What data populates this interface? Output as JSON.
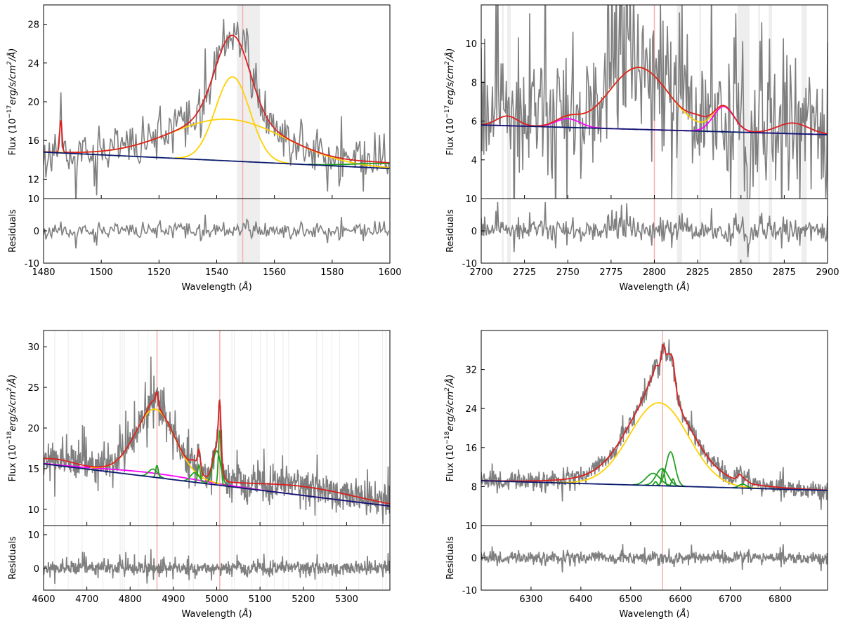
{
  "chart_data": [
    {
      "type": "line",
      "title": "",
      "xlabel": {
        "pre": "Wavelength (",
        "unit": "Å",
        "post": ")"
      },
      "ylabel": {
        "pre": "Flux (10",
        "exp": "−17",
        "unit": "erg/s/cm",
        "sq": "2",
        "post": "/Å)"
      },
      "res_label": "Residuals",
      "xlim": [
        1480,
        1600
      ],
      "ylim": [
        10,
        30
      ],
      "res_ylim": [
        -10,
        10
      ],
      "xticks": [
        1480,
        1500,
        1520,
        1540,
        1560,
        1580,
        1600
      ],
      "yticks": [
        12,
        16,
        20,
        24,
        28
      ],
      "res_yticks": [
        -10,
        0,
        10
      ],
      "continuum": [
        14.8,
        13.1
      ],
      "noise_sigma": 1.2,
      "step": 0.4,
      "seed": 11,
      "fe": [],
      "broad": [
        {
          "center": 1544,
          "amp": 4.3,
          "sigma": 20
        },
        {
          "center": 1545.5,
          "amp": 8.7,
          "sigma": 6
        }
      ],
      "narrow": [
        {
          "center": 1600,
          "amp": 0.5,
          "sigma": 12
        }
      ],
      "extra": [
        {
          "center": 1486,
          "amp": 3.3,
          "sigma": 0.4
        }
      ],
      "bands": [
        [
          1547,
          1555
        ]
      ],
      "lines": [
        1549
      ]
    },
    {
      "type": "line",
      "xlabel": {
        "pre": "Wavelength (",
        "unit": "Å",
        "post": ")"
      },
      "ylabel": {
        "pre": "Flux (10",
        "exp": "−17",
        "unit": "erg/s/cm",
        "sq": "2",
        "post": "/Å)"
      },
      "res_label": "Residuals",
      "xlim": [
        2700,
        2900
      ],
      "ylim": [
        2,
        12
      ],
      "res_ylim": [
        -10,
        10
      ],
      "xticks": [
        2700,
        2725,
        2750,
        2775,
        2800,
        2825,
        2850,
        2875,
        2900
      ],
      "yticks": [
        4,
        6,
        8,
        10
      ],
      "res_yticks": [
        -10,
        0,
        10
      ],
      "continuum": [
        5.8,
        5.3
      ],
      "noise_sigma": 2.0,
      "step": 0.5,
      "seed": 23,
      "fe": [
        {
          "center": 2750,
          "amp": 0.45,
          "sigma": 7
        },
        {
          "center": 2840,
          "amp": 1.3,
          "sigma": 6
        }
      ],
      "broad": [
        {
          "center": 2791,
          "amp": 3.2,
          "sigma": 17
        }
      ],
      "narrow": [],
      "extra": [
        {
          "center": 2715,
          "amp": 0.5,
          "sigma": 6
        },
        {
          "center": 2880,
          "amp": 0.55,
          "sigma": 9
        },
        {
          "center": 2825,
          "amp": 0.35,
          "sigma": 5
        }
      ],
      "bands": [
        [
          2712,
          2713
        ],
        [
          2715,
          2717
        ],
        [
          2813,
          2816
        ],
        [
          2826,
          2827
        ],
        [
          2848,
          2855
        ],
        [
          2860,
          2861
        ],
        [
          2866,
          2868
        ],
        [
          2885,
          2888
        ]
      ],
      "lines": [
        2800
      ]
    },
    {
      "type": "line",
      "xlabel": {
        "pre": "Wavelength (",
        "unit": "Å",
        "post": ")"
      },
      "ylabel": {
        "pre": "Flux (10",
        "exp": "−18",
        "unit": "erg/s/cm",
        "sq": "2",
        "post": "/Å)"
      },
      "res_label": "Residuals",
      "xlim": [
        4600,
        5400
      ],
      "ylim": [
        8,
        32
      ],
      "res_ylim": [
        -6.5,
        12.7
      ],
      "xticks": [
        4600,
        4700,
        4800,
        4900,
        5000,
        5100,
        5200,
        5300
      ],
      "yticks": [
        10,
        15,
        20,
        25,
        30
      ],
      "res_yticks": [
        0,
        10
      ],
      "continuum": [
        15.6,
        10.4
      ],
      "noise_sigma": 1.1,
      "step": 1,
      "seed": 37,
      "fe": [
        {
          "center": 4850,
          "amp": 0.5,
          "sigma": 110
        }
      ],
      "broad": [
        {
          "center": 4858,
          "amp": 7.9,
          "sigma": 45
        }
      ],
      "narrow": [
        {
          "center": 4853,
          "amp": 1.0,
          "sigma": 10
        },
        {
          "center": 4862,
          "amp": 1.5,
          "sigma": 3
        },
        {
          "center": 4950,
          "amp": 1.2,
          "sigma": 10
        },
        {
          "center": 4959,
          "amp": 2.2,
          "sigma": 3
        },
        {
          "center": 5000,
          "amp": 4.2,
          "sigma": 9
        },
        {
          "center": 5007,
          "amp": 6.8,
          "sigma": 3
        }
      ],
      "extra": [
        {
          "center": 4625,
          "amp": 0.7,
          "sigma": 45
        },
        {
          "center": 5200,
          "amp": 1.1,
          "sigma": 120
        }
      ],
      "bands": [
        [
          4625,
          4626
        ],
        [
          4656,
          4657
        ],
        [
          4688,
          4689
        ],
        [
          4736,
          4737
        ],
        [
          4776,
          4777
        ],
        [
          4781,
          4782
        ],
        [
          4786,
          4787
        ],
        [
          4819,
          4820
        ],
        [
          4840,
          4841
        ],
        [
          4897,
          4899
        ],
        [
          4935,
          4936
        ],
        [
          4945,
          4946
        ],
        [
          5034,
          5036
        ],
        [
          5040,
          5042
        ],
        [
          5080,
          5081
        ],
        [
          5100,
          5101
        ],
        [
          5115,
          5116
        ],
        [
          5132,
          5133
        ],
        [
          5152,
          5153
        ],
        [
          5165,
          5167
        ],
        [
          5230,
          5231
        ],
        [
          5244,
          5245
        ],
        [
          5265,
          5266
        ],
        [
          5283,
          5284
        ],
        [
          5327,
          5329
        ],
        [
          5382,
          5383
        ],
        [
          5390,
          5392
        ]
      ],
      "lines": [
        4862,
        5007
      ]
    },
    {
      "type": "line",
      "xlabel": {
        "pre": "Wavelength (",
        "unit": "Å",
        "post": ")"
      },
      "ylabel": {
        "pre": "Flux (10",
        "exp": "−18",
        "unit": "erg/s/cm",
        "sq": "2",
        "post": "/Å)"
      },
      "res_label": "Residuals",
      "xlim": [
        6200,
        6895
      ],
      "ylim": [
        0,
        40
      ],
      "res_ylim": [
        -10,
        10
      ],
      "xticks": [
        6300,
        6400,
        6500,
        6600,
        6700,
        6800
      ],
      "yticks": [
        8,
        16,
        24,
        32
      ],
      "res_yticks": [
        -10,
        0,
        10
      ],
      "continuum": [
        9.2,
        7.2
      ],
      "noise_sigma": 1.0,
      "step": 1,
      "seed": 51,
      "fe": [],
      "broad": [
        {
          "center": 6557,
          "amp": 17,
          "sigma": 59
        }
      ],
      "narrow": [
        {
          "center": 6580,
          "amp": 7,
          "sigma": 9
        },
        {
          "center": 6563,
          "amp": 3.5,
          "sigma": 12
        },
        {
          "center": 6545,
          "amp": 2.5,
          "sigma": 14
        },
        {
          "center": 6565,
          "amp": 3.5,
          "sigma": 3
        },
        {
          "center": 6585,
          "amp": 1.5,
          "sigma": 3
        },
        {
          "center": 6550,
          "amp": 0.8,
          "sigma": 3
        },
        {
          "center": 6725,
          "amp": 0.8,
          "sigma": 8
        }
      ],
      "extra": [
        {
          "center": 6560,
          "amp": 2.5,
          "sigma": 120
        },
        {
          "center": 6718,
          "amp": 0.8,
          "sigma": 4
        }
      ],
      "bands": [],
      "lines": [
        6564
      ]
    }
  ],
  "colors": {
    "spectrum": "#7f7f7f",
    "total": "#dd2020",
    "broad": "#ffd000",
    "narrow": "#22a022",
    "fe": "#ff00ff",
    "continuum": "#0a1a6e",
    "band": "#eeeeee",
    "line": "#f7b0b0"
  }
}
